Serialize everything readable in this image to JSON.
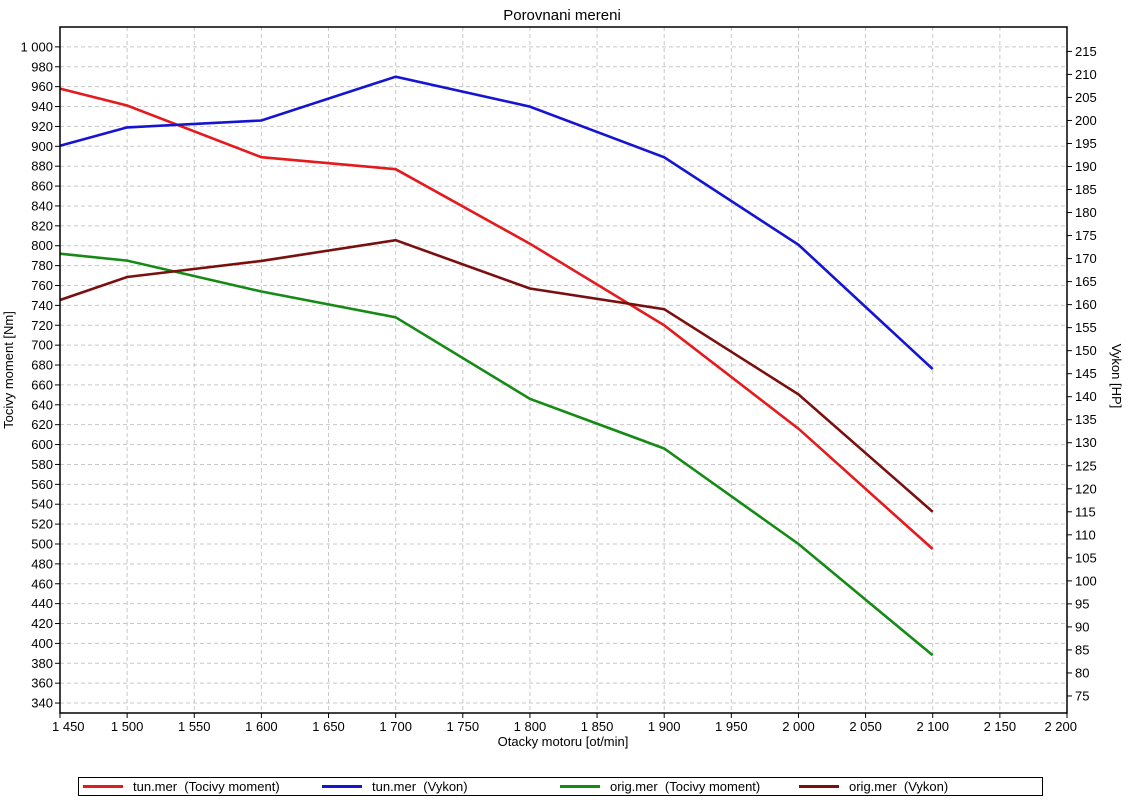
{
  "chart_data": {
    "type": "line",
    "title": "Porovnani mereni",
    "xlabel": "Otacky motoru [ot/min]",
    "ylabel": "Tocivy moment [Nm]",
    "y2label": "Vykon [HP]",
    "xlim": [
      1450,
      2200
    ],
    "ylim": [
      330,
      1020
    ],
    "y2lim": [
      71.3,
      220.3
    ],
    "x_ticks": [
      "1 450",
      "1 500",
      "1 550",
      "1 600",
      "1 650",
      "1 700",
      "1 750",
      "1 800",
      "1 850",
      "1 900",
      "1 950",
      "2 000",
      "2 050",
      "2 100",
      "2 150",
      "2 200"
    ],
    "x_tick_values": [
      1450,
      1500,
      1550,
      1600,
      1650,
      1700,
      1750,
      1800,
      1850,
      1900,
      1950,
      2000,
      2050,
      2100,
      2150,
      2200
    ],
    "y_ticks": [
      "340",
      "360",
      "380",
      "400",
      "420",
      "440",
      "460",
      "480",
      "500",
      "520",
      "540",
      "560",
      "580",
      "600",
      "620",
      "640",
      "660",
      "680",
      "700",
      "720",
      "740",
      "760",
      "780",
      "800",
      "820",
      "840",
      "860",
      "880",
      "900",
      "920",
      "940",
      "960",
      "980",
      "1 000"
    ],
    "y_tick_values": [
      340,
      360,
      380,
      400,
      420,
      440,
      460,
      480,
      500,
      520,
      540,
      560,
      580,
      600,
      620,
      640,
      660,
      680,
      700,
      720,
      740,
      760,
      780,
      800,
      820,
      840,
      860,
      880,
      900,
      920,
      940,
      960,
      980,
      1000
    ],
    "y2_ticks": [
      "75",
      "80",
      "85",
      "90",
      "95",
      "100",
      "105",
      "110",
      "115",
      "120",
      "125",
      "130",
      "135",
      "140",
      "145",
      "150",
      "155",
      "160",
      "165",
      "170",
      "175",
      "180",
      "185",
      "190",
      "195",
      "200",
      "205",
      "210",
      "215"
    ],
    "y2_tick_values": [
      75,
      80,
      85,
      90,
      95,
      100,
      105,
      110,
      115,
      120,
      125,
      130,
      135,
      140,
      145,
      150,
      155,
      160,
      165,
      170,
      175,
      180,
      185,
      190,
      195,
      200,
      205,
      210,
      215
    ],
    "grid": true,
    "legend_position": "bottom",
    "series": [
      {
        "name": "tun.mer  (Tocivy moment)",
        "axis": "left",
        "color": "#e41a1c",
        "x": [
          1450,
          1500,
          1600,
          1700,
          1800,
          1900,
          2000,
          2100
        ],
        "values": [
          958,
          941,
          889,
          877,
          802,
          720,
          616,
          495
        ]
      },
      {
        "name": "tun.mer  (Vykon)",
        "axis": "right",
        "color": "#1414d2",
        "x": [
          1450,
          1500,
          1600,
          1700,
          1800,
          1900,
          2000,
          2100
        ],
        "values": [
          194.5,
          198.5,
          200,
          209.5,
          203,
          192,
          173,
          146
        ]
      },
      {
        "name": "orig.mer  (Tocivy moment)",
        "axis": "left",
        "color": "#158a15",
        "x": [
          1450,
          1500,
          1600,
          1700,
          1800,
          1900,
          2000,
          2100
        ],
        "values": [
          792,
          785,
          754,
          728,
          646,
          596,
          500,
          388
        ]
      },
      {
        "name": "orig.mer  (Vykon)",
        "axis": "right",
        "color": "#7a0f0f",
        "x": [
          1450,
          1500,
          1600,
          1700,
          1800,
          1900,
          2000,
          2100
        ],
        "values": [
          161,
          166,
          169.5,
          174,
          163.5,
          159,
          140.5,
          115
        ]
      }
    ]
  }
}
